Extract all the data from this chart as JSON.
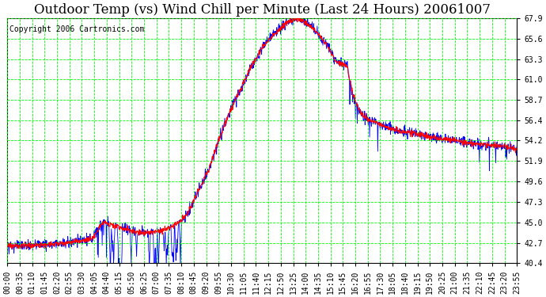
{
  "title": "Outdoor Temp (vs) Wind Chill per Minute (Last 24 Hours) 20061007",
  "copyright_text": "Copyright 2006 Cartronics.com",
  "background_color": "#ffffff",
  "plot_bg_color": "#ffffff",
  "grid_color": "#00ff00",
  "y_ticks": [
    40.4,
    42.7,
    45.0,
    47.3,
    49.6,
    51.9,
    54.2,
    56.4,
    58.7,
    61.0,
    63.3,
    65.6,
    67.9
  ],
  "y_min": 40.4,
  "y_max": 67.9,
  "x_labels": [
    "00:00",
    "00:35",
    "01:10",
    "01:45",
    "02:20",
    "02:55",
    "03:30",
    "04:05",
    "04:40",
    "05:15",
    "05:50",
    "06:25",
    "07:00",
    "07:35",
    "08:10",
    "08:45",
    "09:20",
    "09:55",
    "10:30",
    "11:05",
    "11:40",
    "12:15",
    "12:50",
    "13:25",
    "14:00",
    "14:35",
    "15:10",
    "15:45",
    "16:20",
    "16:55",
    "17:30",
    "18:05",
    "18:40",
    "19:15",
    "19:50",
    "20:25",
    "21:00",
    "21:35",
    "22:10",
    "22:45",
    "23:20",
    "23:55"
  ],
  "n_points": 1440,
  "outdoor_color": "#ff0000",
  "windchill_color": "#0000ff",
  "title_fontsize": 12,
  "copyright_fontsize": 7,
  "tick_fontsize": 7
}
